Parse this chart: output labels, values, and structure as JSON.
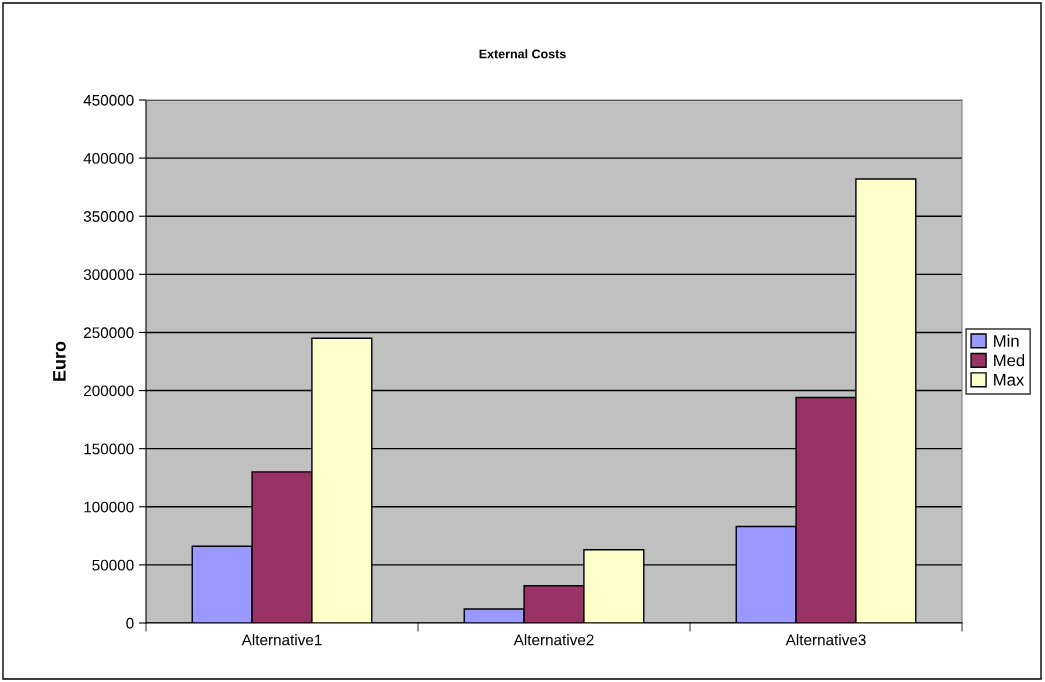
{
  "chart_data": {
    "type": "bar",
    "title": "External Costs",
    "ylabel": "Euro",
    "categories": [
      "Alternative1",
      "Alternative2",
      "Alternative3"
    ],
    "series": [
      {
        "name": "Min",
        "color": "#9999ff",
        "values": [
          66000,
          12000,
          83000
        ]
      },
      {
        "name": "Med",
        "color": "#993366",
        "values": [
          130000,
          32000,
          194000
        ]
      },
      {
        "name": "Max",
        "color": "#ffffcc",
        "values": [
          245000,
          63000,
          382000
        ]
      }
    ],
    "ylim": [
      0,
      450000
    ],
    "yticks": [
      0,
      50000,
      100000,
      150000,
      200000,
      250000,
      300000,
      350000,
      400000,
      450000
    ],
    "grid": "y",
    "legend": "right"
  }
}
